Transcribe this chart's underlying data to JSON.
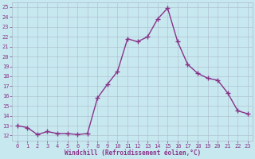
{
  "x": [
    0,
    1,
    2,
    3,
    4,
    5,
    6,
    7,
    8,
    9,
    10,
    11,
    12,
    13,
    14,
    15,
    16,
    17,
    18,
    19,
    20,
    21,
    22,
    23
  ],
  "y": [
    13.0,
    12.8,
    12.1,
    12.4,
    12.2,
    12.2,
    12.1,
    12.2,
    15.8,
    17.2,
    18.5,
    21.8,
    21.5,
    22.0,
    23.8,
    24.9,
    21.5,
    19.2,
    18.3,
    17.8,
    17.6,
    16.3,
    14.5,
    14.2
  ],
  "line_color": "#883388",
  "marker": "+",
  "markersize": 4,
  "markeredgewidth": 1.0,
  "linewidth": 1.0,
  "bg_color": "#c8e8f0",
  "grid_color": "#aabbcc",
  "plot_area_bg": "#c8e8f0",
  "xlabel": "Windchill (Refroidissement éolien,°C)",
  "xlabel_color": "#883388",
  "tick_color": "#883388",
  "xlim": [
    -0.5,
    23.5
  ],
  "ylim": [
    11.5,
    25.5
  ],
  "yticks": [
    12,
    13,
    14,
    15,
    16,
    17,
    18,
    19,
    20,
    21,
    22,
    23,
    24,
    25
  ],
  "xticks": [
    0,
    1,
    2,
    3,
    4,
    5,
    6,
    7,
    8,
    9,
    10,
    11,
    12,
    13,
    14,
    15,
    16,
    17,
    18,
    19,
    20,
    21,
    22,
    23
  ],
  "font_color": "#883388",
  "tick_fontsize": 5.0,
  "xlabel_fontsize": 5.5
}
